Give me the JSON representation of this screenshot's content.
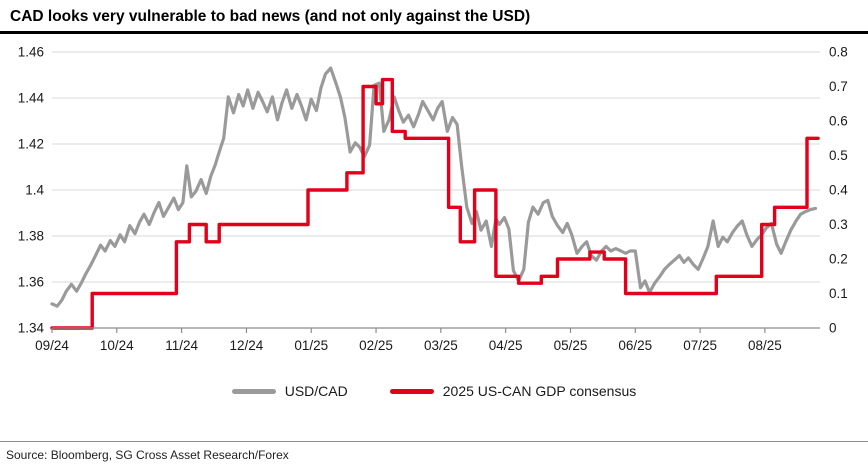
{
  "header": {
    "title": "CAD looks very vulnerable to bad news (and not only against the USD)"
  },
  "footer": {
    "source": "Source: Bloomberg, SG Cross Asset Research/Forex"
  },
  "chart_data": {
    "type": "line",
    "title": "CAD looks very vulnerable to bad news (and not only against the USD)",
    "grid": true,
    "legend_position": "bottom",
    "x_axis": {
      "domain": [
        0,
        11.85
      ],
      "tick_positions": [
        0,
        1,
        2,
        3,
        4,
        5,
        6,
        7,
        8,
        9,
        10,
        11
      ],
      "tick_labels": [
        "09/24",
        "10/24",
        "11/24",
        "12/24",
        "01/25",
        "02/25",
        "03/25",
        "04/25",
        "05/25",
        "06/25",
        "07/25",
        "08/25"
      ]
    },
    "left_axis": {
      "domain": [
        1.34,
        1.46
      ],
      "ticks": [
        1.34,
        1.36,
        1.38,
        1.4,
        1.42,
        1.44,
        1.46
      ],
      "tick_labels": [
        "1.34",
        "1.36",
        "1.38",
        "1.4",
        "1.42",
        "1.44",
        "1.46"
      ]
    },
    "right_axis": {
      "domain": [
        0,
        0.8
      ],
      "ticks": [
        0,
        0.1,
        0.2,
        0.3,
        0.4,
        0.5,
        0.6,
        0.7,
        0.8
      ],
      "tick_labels": [
        "0",
        "0.1",
        "0.2",
        "0.3",
        "0.4",
        "0.5",
        "0.6",
        "0.7",
        "0.8"
      ]
    },
    "colors": {
      "grid": "#d9d9d9",
      "axis": "#8c8c8c",
      "tick_text": "#1a1a1a"
    },
    "series": [
      {
        "name": "USD/CAD",
        "axis": "left",
        "color": "#9a9a9a",
        "stroke_width": 3.2,
        "points": [
          [
            0.0,
            1.3505
          ],
          [
            0.08,
            1.3495
          ],
          [
            0.15,
            1.352
          ],
          [
            0.22,
            1.356
          ],
          [
            0.3,
            1.359
          ],
          [
            0.38,
            1.356
          ],
          [
            0.45,
            1.3595
          ],
          [
            0.52,
            1.3635
          ],
          [
            0.6,
            1.3675
          ],
          [
            0.68,
            1.372
          ],
          [
            0.75,
            1.376
          ],
          [
            0.82,
            1.3735
          ],
          [
            0.9,
            1.378
          ],
          [
            0.97,
            1.3755
          ],
          [
            1.05,
            1.3805
          ],
          [
            1.12,
            1.3775
          ],
          [
            1.2,
            1.3845
          ],
          [
            1.28,
            1.381
          ],
          [
            1.35,
            1.386
          ],
          [
            1.42,
            1.3895
          ],
          [
            1.5,
            1.385
          ],
          [
            1.58,
            1.3905
          ],
          [
            1.65,
            1.3945
          ],
          [
            1.72,
            1.3885
          ],
          [
            1.8,
            1.3925
          ],
          [
            1.88,
            1.3965
          ],
          [
            1.95,
            1.3915
          ],
          [
            2.02,
            1.3945
          ],
          [
            2.08,
            1.4105
          ],
          [
            2.15,
            1.397
          ],
          [
            2.22,
            1.3995
          ],
          [
            2.3,
            1.4045
          ],
          [
            2.38,
            1.3985
          ],
          [
            2.45,
            1.406
          ],
          [
            2.52,
            1.411
          ],
          [
            2.58,
            1.4165
          ],
          [
            2.65,
            1.4225
          ],
          [
            2.72,
            1.4405
          ],
          [
            2.8,
            1.4335
          ],
          [
            2.88,
            1.4415
          ],
          [
            2.95,
            1.4365
          ],
          [
            3.02,
            1.4435
          ],
          [
            3.1,
            1.4355
          ],
          [
            3.18,
            1.4425
          ],
          [
            3.25,
            1.4385
          ],
          [
            3.32,
            1.434
          ],
          [
            3.4,
            1.4405
          ],
          [
            3.48,
            1.4305
          ],
          [
            3.55,
            1.438
          ],
          [
            3.62,
            1.4435
          ],
          [
            3.7,
            1.4355
          ],
          [
            3.78,
            1.4415
          ],
          [
            3.85,
            1.4365
          ],
          [
            3.92,
            1.4305
          ],
          [
            4.0,
            1.4395
          ],
          [
            4.08,
            1.4345
          ],
          [
            4.15,
            1.4445
          ],
          [
            4.22,
            1.4505
          ],
          [
            4.3,
            1.453
          ],
          [
            4.38,
            1.4465
          ],
          [
            4.45,
            1.4405
          ],
          [
            4.52,
            1.4315
          ],
          [
            4.6,
            1.4165
          ],
          [
            4.68,
            1.4205
          ],
          [
            4.75,
            1.4185
          ],
          [
            4.82,
            1.4145
          ],
          [
            4.9,
            1.4195
          ],
          [
            4.97,
            1.4455
          ],
          [
            5.05,
            1.4465
          ],
          [
            5.12,
            1.4255
          ],
          [
            5.2,
            1.4305
          ],
          [
            5.28,
            1.4405
          ],
          [
            5.35,
            1.4345
          ],
          [
            5.42,
            1.4295
          ],
          [
            5.5,
            1.4325
          ],
          [
            5.58,
            1.4275
          ],
          [
            5.65,
            1.4325
          ],
          [
            5.72,
            1.4385
          ],
          [
            5.8,
            1.4345
          ],
          [
            5.88,
            1.4305
          ],
          [
            5.95,
            1.4355
          ],
          [
            6.02,
            1.4385
          ],
          [
            6.1,
            1.4255
          ],
          [
            6.18,
            1.4315
          ],
          [
            6.25,
            1.4285
          ],
          [
            6.32,
            1.4105
          ],
          [
            6.4,
            1.3925
          ],
          [
            6.48,
            1.3855
          ],
          [
            6.55,
            1.3905
          ],
          [
            6.62,
            1.3825
          ],
          [
            6.7,
            1.3865
          ],
          [
            6.78,
            1.3755
          ],
          [
            6.85,
            1.3875
          ],
          [
            6.9,
            1.385
          ],
          [
            6.98,
            1.388
          ],
          [
            7.05,
            1.383
          ],
          [
            7.12,
            1.365
          ],
          [
            7.2,
            1.3605
          ],
          [
            7.28,
            1.3655
          ],
          [
            7.35,
            1.386
          ],
          [
            7.42,
            1.3925
          ],
          [
            7.5,
            1.3895
          ],
          [
            7.58,
            1.3945
          ],
          [
            7.65,
            1.3955
          ],
          [
            7.72,
            1.3885
          ],
          [
            7.8,
            1.3845
          ],
          [
            7.88,
            1.3815
          ],
          [
            7.95,
            1.3855
          ],
          [
            8.02,
            1.3805
          ],
          [
            8.1,
            1.3725
          ],
          [
            8.18,
            1.3755
          ],
          [
            8.25,
            1.3775
          ],
          [
            8.32,
            1.3715
          ],
          [
            8.4,
            1.3695
          ],
          [
            8.48,
            1.3735
          ],
          [
            8.55,
            1.3755
          ],
          [
            8.62,
            1.3735
          ],
          [
            8.7,
            1.3745
          ],
          [
            8.78,
            1.3735
          ],
          [
            8.85,
            1.3725
          ],
          [
            8.92,
            1.3735
          ],
          [
            9.0,
            1.3735
          ],
          [
            9.08,
            1.3575
          ],
          [
            9.15,
            1.3605
          ],
          [
            9.22,
            1.3555
          ],
          [
            9.3,
            1.3595
          ],
          [
            9.38,
            1.3625
          ],
          [
            9.45,
            1.3655
          ],
          [
            9.52,
            1.3675
          ],
          [
            9.6,
            1.3695
          ],
          [
            9.68,
            1.3715
          ],
          [
            9.75,
            1.3685
          ],
          [
            9.82,
            1.3705
          ],
          [
            9.9,
            1.3675
          ],
          [
            9.97,
            1.3655
          ],
          [
            10.05,
            1.3705
          ],
          [
            10.12,
            1.3755
          ],
          [
            10.2,
            1.3865
          ],
          [
            10.28,
            1.3755
          ],
          [
            10.35,
            1.3795
          ],
          [
            10.42,
            1.3775
          ],
          [
            10.5,
            1.3815
          ],
          [
            10.58,
            1.3845
          ],
          [
            10.65,
            1.3865
          ],
          [
            10.72,
            1.3805
          ],
          [
            10.8,
            1.3755
          ],
          [
            10.88,
            1.3785
          ],
          [
            10.95,
            1.3805
          ],
          [
            11.02,
            1.3835
          ],
          [
            11.1,
            1.3855
          ],
          [
            11.18,
            1.3765
          ],
          [
            11.25,
            1.3725
          ],
          [
            11.32,
            1.3775
          ],
          [
            11.4,
            1.3825
          ],
          [
            11.48,
            1.3865
          ],
          [
            11.55,
            1.3895
          ],
          [
            11.62,
            1.3905
          ],
          [
            11.7,
            1.3915
          ],
          [
            11.78,
            1.392
          ]
        ]
      },
      {
        "name": "2025 US-CAN GDP consensus",
        "axis": "right",
        "color": "#e2001a",
        "stroke_width": 3.4,
        "points": [
          [
            0.0,
            0.0
          ],
          [
            0.62,
            0.0
          ],
          [
            0.62,
            0.1
          ],
          [
            1.92,
            0.1
          ],
          [
            1.92,
            0.25
          ],
          [
            2.12,
            0.25
          ],
          [
            2.12,
            0.3
          ],
          [
            2.38,
            0.3
          ],
          [
            2.38,
            0.25
          ],
          [
            2.58,
            0.25
          ],
          [
            2.58,
            0.3
          ],
          [
            3.95,
            0.3
          ],
          [
            3.95,
            0.4
          ],
          [
            4.55,
            0.4
          ],
          [
            4.55,
            0.45
          ],
          [
            4.8,
            0.45
          ],
          [
            4.8,
            0.7
          ],
          [
            5.0,
            0.7
          ],
          [
            5.0,
            0.65
          ],
          [
            5.1,
            0.65
          ],
          [
            5.1,
            0.72
          ],
          [
            5.25,
            0.72
          ],
          [
            5.25,
            0.57
          ],
          [
            5.45,
            0.57
          ],
          [
            5.45,
            0.55
          ],
          [
            6.12,
            0.55
          ],
          [
            6.12,
            0.35
          ],
          [
            6.3,
            0.35
          ],
          [
            6.3,
            0.25
          ],
          [
            6.52,
            0.25
          ],
          [
            6.52,
            0.4
          ],
          [
            6.85,
            0.4
          ],
          [
            6.85,
            0.15
          ],
          [
            7.2,
            0.15
          ],
          [
            7.2,
            0.13
          ],
          [
            7.55,
            0.13
          ],
          [
            7.55,
            0.15
          ],
          [
            7.8,
            0.15
          ],
          [
            7.8,
            0.2
          ],
          [
            8.3,
            0.2
          ],
          [
            8.3,
            0.22
          ],
          [
            8.52,
            0.22
          ],
          [
            8.52,
            0.2
          ],
          [
            8.85,
            0.2
          ],
          [
            8.85,
            0.1
          ],
          [
            10.25,
            0.1
          ],
          [
            10.25,
            0.15
          ],
          [
            10.95,
            0.15
          ],
          [
            10.95,
            0.3
          ],
          [
            11.15,
            0.3
          ],
          [
            11.15,
            0.35
          ],
          [
            11.65,
            0.35
          ],
          [
            11.65,
            0.55
          ],
          [
            11.82,
            0.55
          ]
        ]
      }
    ]
  }
}
